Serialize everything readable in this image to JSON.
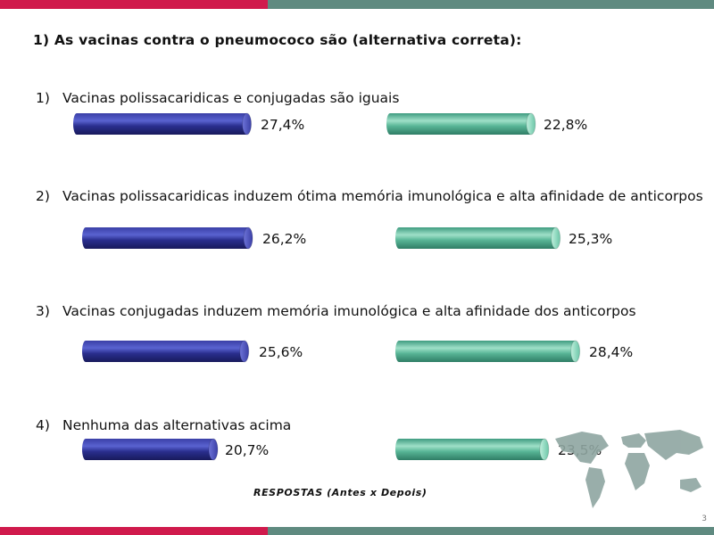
{
  "question": "1) As vacinas contra o pneumococo são (alternativa correta):",
  "footer": "RESPOSTAS (Antes x Depois)",
  "page_number": "3",
  "colors": {
    "before": "#2b2f8f",
    "after": "#5cb89a",
    "red": "#d01a4c",
    "teal": "#5f8a80"
  },
  "chart_data": {
    "type": "bar",
    "title": "1) As vacinas contra o pneumococo são (alternativa correta):",
    "xlabel": "RESPOSTAS (Antes x Depois)",
    "categories": [
      "Vacinas polissacaridicas e conjugadas são iguais",
      "Vacinas polissacaridicas induzem ótima memória imunológica e alta afinidade de anticorpos",
      "Vacinas conjugadas induzem memória imunológica e alta afinidade dos anticorpos",
      "Nenhuma das alternativas acima"
    ],
    "options": [
      {
        "num": "1)",
        "text": "Vacinas polissacaridicas e conjugadas são iguais",
        "before": 27.4,
        "after": 22.8,
        "before_label": "27,4%",
        "after_label": "22,8%"
      },
      {
        "num": "2)",
        "text": "Vacinas polissacaridicas induzem ótima memória imunológica e alta afinidade de anticorpos",
        "before": 26.2,
        "after": 25.3,
        "before_label": "26,2%",
        "after_label": "25,3%"
      },
      {
        "num": "3)",
        "text": "Vacinas conjugadas induzem memória imunológica e alta afinidade dos anticorpos",
        "before": 25.6,
        "after": 28.4,
        "before_label": "25,6%",
        "after_label": "28,4%"
      },
      {
        "num": "4)",
        "text": "Nenhuma das alternativas acima",
        "before": 20.7,
        "after": 23.5,
        "before_label": "20,7%",
        "after_label": "23,5%"
      }
    ]
  }
}
